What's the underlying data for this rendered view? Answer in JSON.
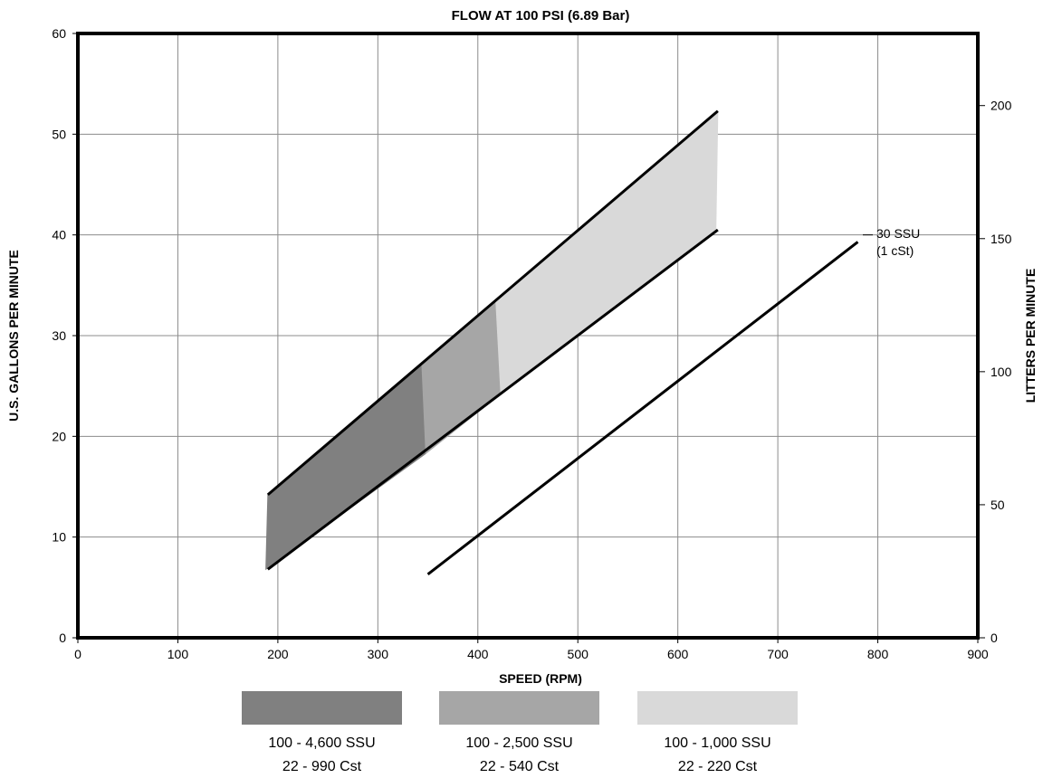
{
  "chart_data": {
    "type": "area",
    "title": "FLOW AT 100 PSI (6.89 Bar)",
    "xlabel": "SPEED (RPM)",
    "ylabel": "U.S. GALLONS PER MINUTE",
    "y2label": "LITTERS PER MINUTE",
    "xlim": [
      0,
      900
    ],
    "ylim": [
      0,
      60
    ],
    "y2lim": [
      0,
      227.1
    ],
    "xticks": [
      0,
      100,
      200,
      300,
      400,
      500,
      600,
      700,
      800,
      900
    ],
    "yticks": [
      0,
      10,
      20,
      30,
      40,
      50,
      60
    ],
    "y2ticks": [
      0,
      50,
      100,
      150,
      200
    ],
    "grid": true,
    "band": {
      "upper_line": [
        [
          190,
          14.2
        ],
        [
          640,
          52.3
        ]
      ],
      "lower_line": [
        [
          190,
          6.8
        ],
        [
          640,
          40.5
        ]
      ],
      "regions": [
        {
          "name": "100 - 4,600 SSU",
          "sub": "22 - 990 Cst",
          "color": "#808080",
          "polygon": [
            [
              188,
              6.8
            ],
            [
              190,
              14.2
            ],
            [
              344,
              27.2
            ],
            [
              348,
              18.3
            ]
          ]
        },
        {
          "name": "100 - 2,500 SSU",
          "sub": "22 - 540 Cst",
          "color": "#a6a6a6",
          "polygon": [
            [
              348,
              18.3
            ],
            [
              344,
              27.2
            ],
            [
              418,
              33.5
            ],
            [
              423,
              24.2
            ]
          ]
        },
        {
          "name": "100 - 1,000 SSU",
          "sub": "22 - 220 Cst",
          "color": "#d9d9d9",
          "polygon": [
            [
              423,
              24.2
            ],
            [
              418,
              33.5
            ],
            [
              640,
              52.3
            ],
            [
              638,
              40.3
            ]
          ]
        }
      ]
    },
    "series": [
      {
        "name": "30 SSU (1 cSt)",
        "points": [
          [
            350,
            6.3
          ],
          [
            780,
            39.3
          ]
        ]
      }
    ],
    "annotation": {
      "line1": "30 SSU",
      "line2": "(1 cSt)",
      "at": [
        790,
        40
      ]
    },
    "legend_position": "bottom"
  }
}
